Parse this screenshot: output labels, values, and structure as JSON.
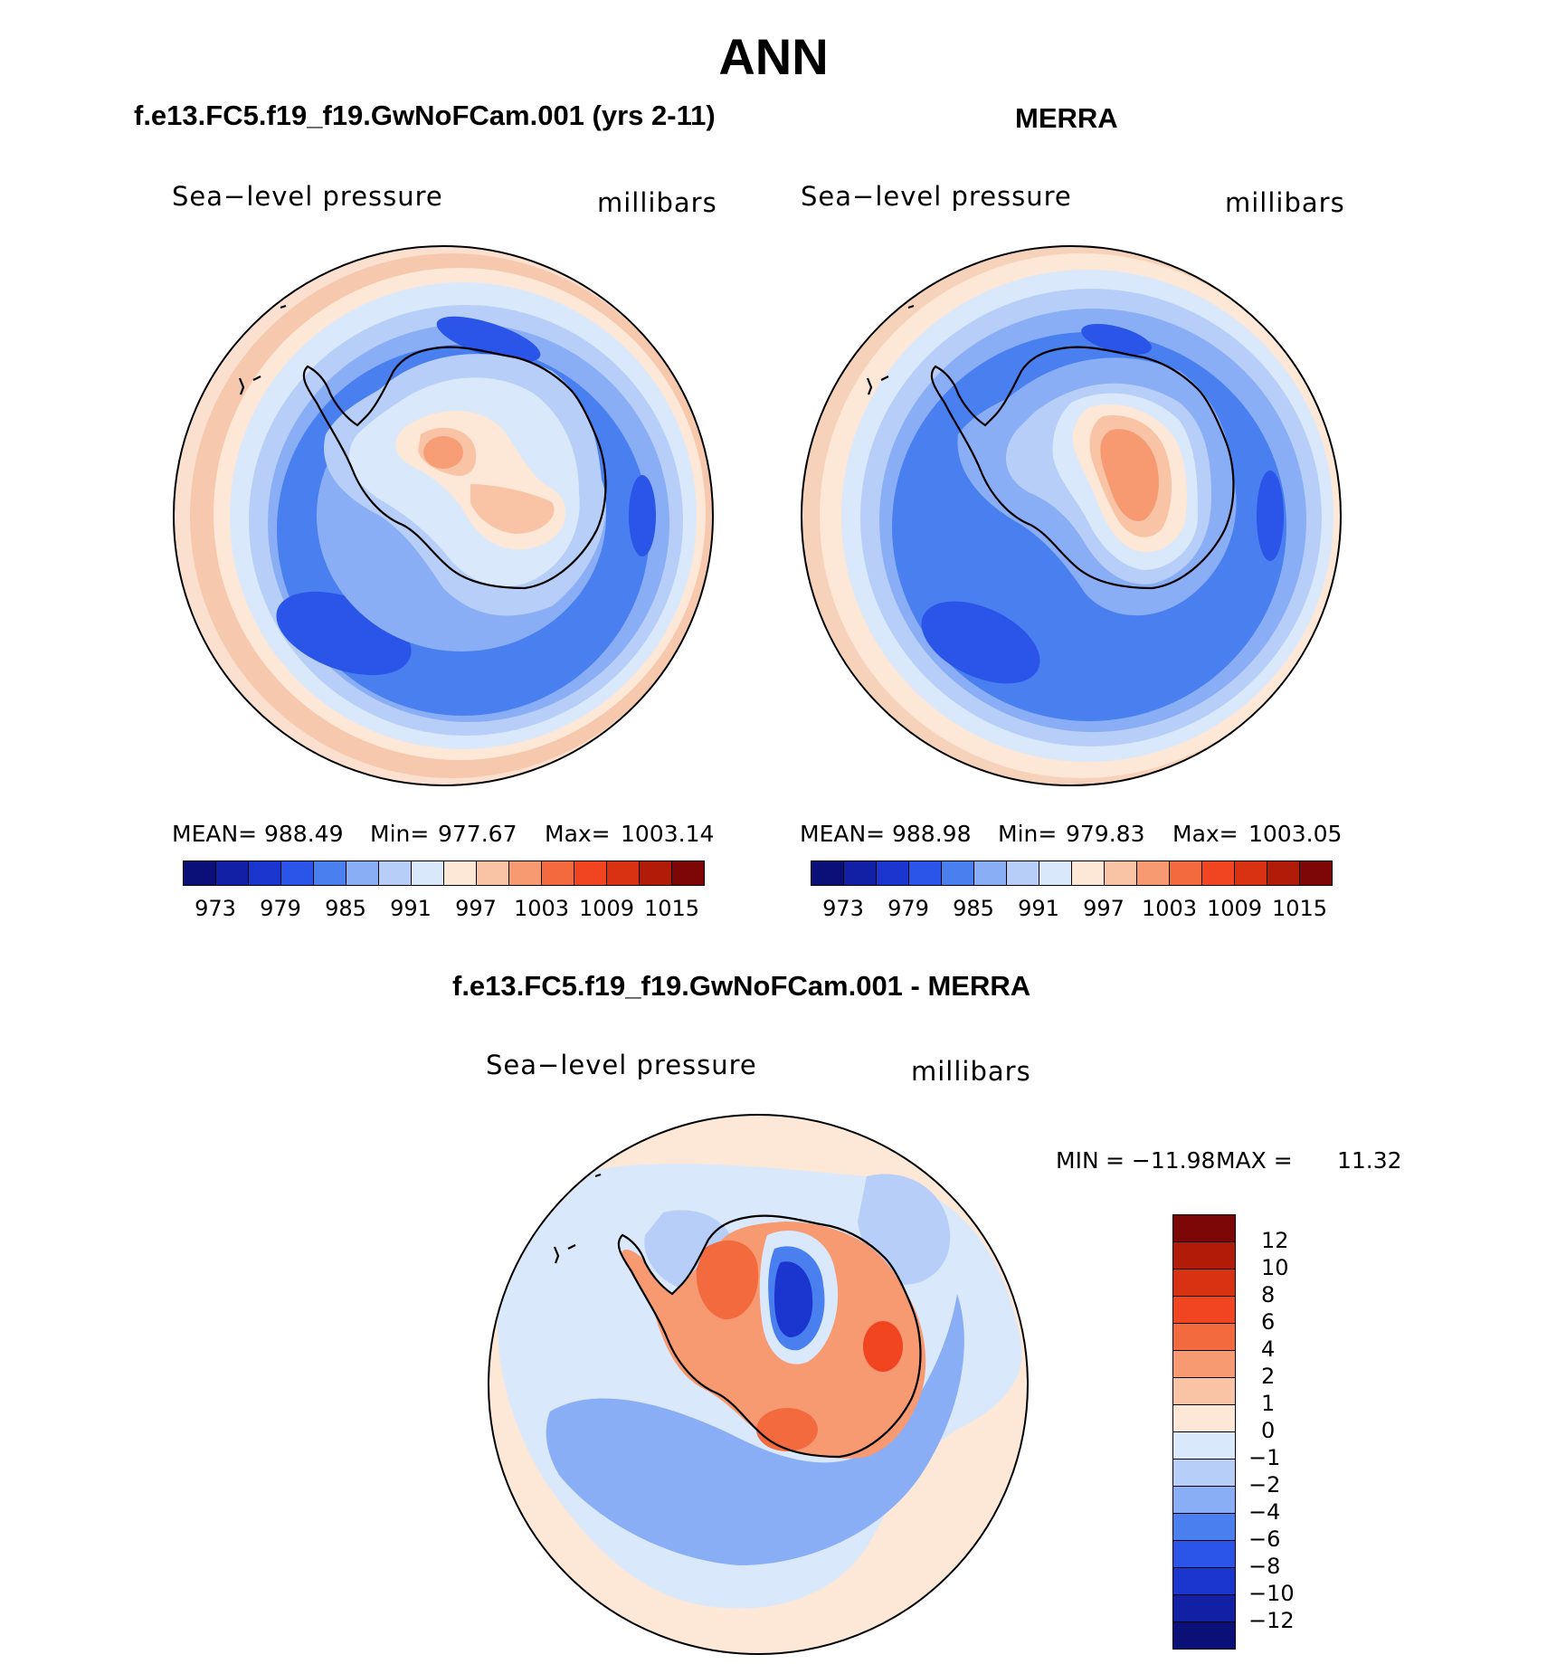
{
  "figure": {
    "title": "ANN",
    "panels": [
      {
        "title": "f.e13.FC5.f19_f19.GwNoFCam.001 (yrs 2-11)",
        "variable": "Sea−level pressure",
        "units": "millibars",
        "stats": {
          "mean_label": "MEAN=",
          "mean": "988.49",
          "min_label": "Min=",
          "min": "977.67",
          "max_label": "Max=",
          "max": "1003.14"
        }
      },
      {
        "title": "MERRA",
        "variable": "Sea−level pressure",
        "units": "millibars",
        "stats": {
          "mean_label": "MEAN=",
          "mean": "988.98",
          "min_label": "Min=",
          "min": "979.83",
          "max_label": "Max=",
          "max": "1003.05"
        }
      },
      {
        "title": "f.e13.FC5.f19_f19.GwNoFCam.001 - MERRA",
        "variable": "Sea−level pressure",
        "units": "millibars",
        "stats": {
          "min_label": "MIN",
          "min_value": "= −11.98",
          "max_label": "MAX =",
          "max_value": "11.32"
        }
      }
    ],
    "colorbar_abs": {
      "ticks": [
        "973",
        "979",
        "985",
        "991",
        "997",
        "1003",
        "1009",
        "1015"
      ],
      "colors": [
        "#0b0f78",
        "#1220a6",
        "#1b35cf",
        "#2a55e8",
        "#4a7ff0",
        "#8aaef5",
        "#b7cff8",
        "#d9e8fb",
        "#fde7d6",
        "#f9c3a6",
        "#f79a72",
        "#f36a3f",
        "#f04520",
        "#d83212",
        "#b01c08",
        "#7c0706"
      ]
    },
    "colorbar_diff": {
      "ticks": [
        "12",
        "10",
        "8",
        "6",
        "4",
        "2",
        "1",
        "0",
        "−1",
        "−2",
        "−4",
        "−6",
        "−8",
        "−10",
        "−12"
      ],
      "colors": [
        "#7c0706",
        "#b01c08",
        "#d83212",
        "#f04520",
        "#f36a3f",
        "#f79a72",
        "#f9c3a6",
        "#fde7d6",
        "#d9e8fb",
        "#b7cff8",
        "#8aaef5",
        "#4a7ff0",
        "#2a55e8",
        "#1b35cf",
        "#1220a6",
        "#0b0f78"
      ]
    }
  }
}
